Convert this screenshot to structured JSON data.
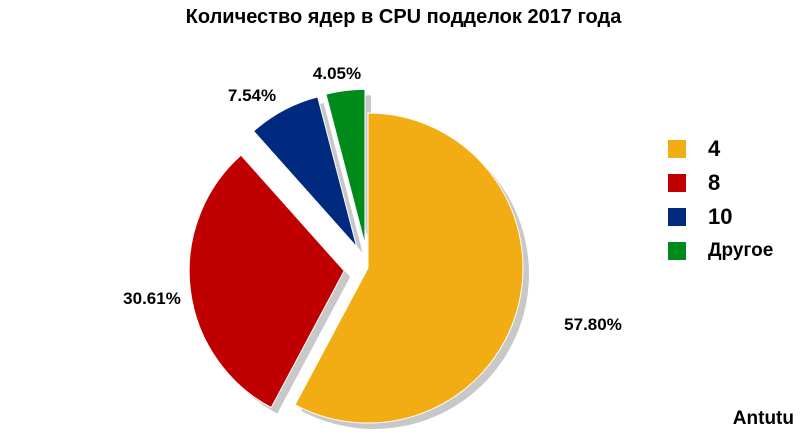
{
  "chart_data": {
    "type": "pie",
    "title": "Количество ядер в CPU подделок 2017 года",
    "categories": [
      "4",
      "8",
      "10",
      "Другое"
    ],
    "values": [
      57.8,
      30.61,
      7.54,
      4.05
    ],
    "labels": [
      "57.80%",
      "30.61%",
      "7.54%",
      "4.05%"
    ],
    "colors": [
      "#f1ad13",
      "#c00000",
      "#002a80",
      "#008a1a"
    ],
    "exploded": [
      false,
      true,
      true,
      true
    ],
    "legend_position": "right"
  },
  "source": "Antutu"
}
